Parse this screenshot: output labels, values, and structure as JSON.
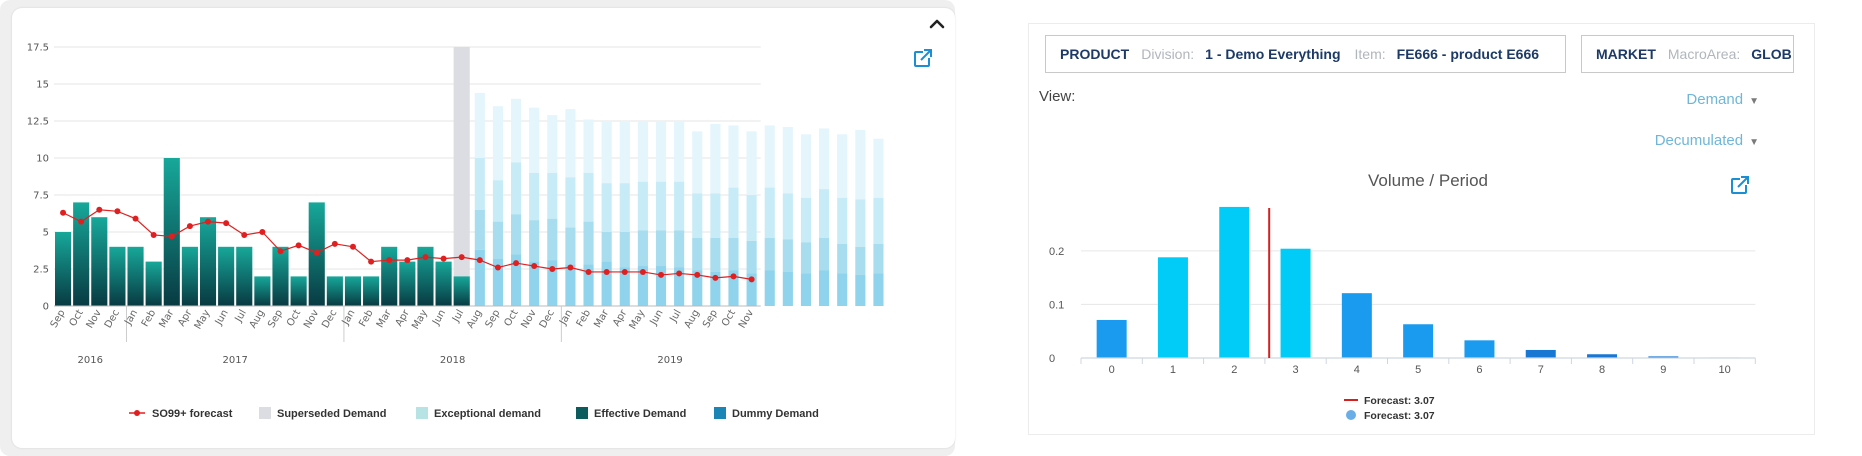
{
  "left_panel": {
    "collapse_icon": "chevron-up-icon",
    "export_icon": "external-link-icon",
    "legend": [
      {
        "label": "SO99+ forecast",
        "kind": "line",
        "color": "#e02020"
      },
      {
        "label": "Superseded Demand",
        "kind": "swatch",
        "color": "#dcdde3"
      },
      {
        "label": "Exceptional demand",
        "kind": "swatch",
        "color": "#b7e3e4"
      },
      {
        "label": "Effective Demand",
        "kind": "swatch",
        "color": "#0b5b5f"
      },
      {
        "label": "Dummy Demand",
        "kind": "swatch",
        "color": "#1b86b6"
      }
    ]
  },
  "right_panel": {
    "filters": {
      "product": {
        "key": "PRODUCT",
        "division_label": "Division:",
        "division_value": "1 - Demo Everything",
        "item_label": "Item:",
        "item_value": "FE666 - product E666"
      },
      "market": {
        "key": "MARKET",
        "macroarea_label": "MacroArea:",
        "macroarea_value": "GLOB"
      }
    },
    "view_label": "View:",
    "dropdowns": {
      "demand": "Demand",
      "decumulated": "Decumulated"
    },
    "title": "Volume / Period",
    "export_icon": "external-link-icon",
    "legend": [
      {
        "label": "Forecast: 3.07",
        "kind": "line",
        "color": "#d62020"
      },
      {
        "label": "Forecast: 3.07",
        "kind": "dot",
        "color": "#6aaee8"
      }
    ]
  },
  "chart_data": [
    {
      "type": "bar",
      "title": "",
      "stacked": true,
      "ylim": [
        0,
        17.5
      ],
      "yticks": [
        "0",
        "2.5",
        "5",
        "7.5",
        "10",
        "12.5",
        "15",
        "17.5"
      ],
      "categories": [
        "Sep",
        "Oct",
        "Nov",
        "Dec",
        "Jan",
        "Feb",
        "Mar",
        "Apr",
        "May",
        "Jun",
        "Jul",
        "Aug",
        "Sep",
        "Oct",
        "Nov",
        "Dec",
        "Jan",
        "Feb",
        "Mar",
        "Apr",
        "May",
        "Jun",
        "Jul",
        "Aug",
        "Sep",
        "Oct",
        "Nov",
        "Dec",
        "Jan",
        "Feb",
        "Mar",
        "Apr",
        "May",
        "Jun",
        "Jul",
        "Aug",
        "Sep",
        "Oct",
        "Nov"
      ],
      "year_labels": [
        {
          "label": "2016",
          "at_index": 1.5
        },
        {
          "label": "2017",
          "at_index": 9.5
        },
        {
          "label": "2018",
          "at_index": 21.5
        },
        {
          "label": "2019",
          "at_index": 33.5
        }
      ],
      "year_boundaries": [
        4,
        16,
        28
      ],
      "history_count": 23,
      "superseded_index": 22,
      "effective_values": [
        5,
        7,
        6,
        4,
        4,
        3,
        10,
        4,
        6,
        4,
        4,
        2,
        4,
        2,
        7,
        2,
        2,
        2,
        4,
        3,
        4,
        3,
        2
      ],
      "future_dark_values": [
        3.8,
        3.2,
        3.5,
        3.0,
        3.1,
        2.8,
        2.8,
        3.0,
        2.6,
        2.7,
        2.7,
        2.6,
        2.4,
        2.3,
        2.4,
        2.2,
        2.4,
        2.3,
        2.2,
        2.4,
        2.2,
        2.1,
        2.2
      ],
      "future_light_values": [
        6.5,
        5.7,
        6.2,
        5.8,
        5.9,
        5.3,
        5.7,
        5.0,
        5.0,
        5.1,
        5.1,
        5.1,
        4.6,
        4.6,
        4.6,
        4.4,
        4.6,
        4.5,
        4.3,
        4.6,
        4.2,
        4.0,
        4.2
      ],
      "future_mid_values": [
        10.0,
        8.5,
        9.7,
        9.0,
        9.0,
        8.7,
        9.0,
        8.3,
        8.3,
        8.4,
        8.4,
        8.4,
        7.6,
        7.6,
        8.0,
        7.5,
        8.0,
        7.6,
        7.3,
        7.9,
        7.3,
        7.2,
        7.3
      ],
      "future_total_values": [
        14.4,
        13.5,
        14.0,
        13.4,
        12.9,
        13.3,
        12.6,
        12.5,
        12.5,
        12.5,
        12.5,
        12.5,
        11.8,
        12.3,
        12.2,
        11.8,
        12.2,
        12.1,
        11.6,
        12.0,
        11.6,
        11.9,
        11.3
      ],
      "series": [
        {
          "name": "SO99+ forecast",
          "type": "line",
          "values": [
            6.3,
            5.7,
            6.5,
            6.4,
            5.9,
            4.8,
            4.7,
            5.4,
            5.7,
            5.6,
            4.8,
            5.0,
            3.7,
            4.1,
            3.6,
            4.2,
            4.0,
            3.0,
            3.1,
            3.1,
            3.3,
            3.2,
            3.3,
            3.1,
            2.6,
            2.9,
            2.7,
            2.5,
            2.6,
            2.3,
            2.3,
            2.3,
            2.3,
            2.1,
            2.2,
            2.1,
            1.9,
            2.0,
            1.8
          ]
        }
      ]
    },
    {
      "type": "bar",
      "title": "Volume / Period",
      "xlabel": "",
      "ylabel": "",
      "categories": [
        "0",
        "1",
        "2",
        "3",
        "4",
        "5",
        "6",
        "7",
        "8",
        "9",
        "10"
      ],
      "ylim": [
        0,
        0.28
      ],
      "yticks": [
        "0",
        "0.1",
        "0.2"
      ],
      "series": [
        {
          "name": "Forecast: 3.07",
          "values": [
            0.071,
            0.188,
            0.282,
            0.204,
            0.121,
            0.063,
            0.033,
            0.015,
            0.007,
            0.003,
            0.001
          ]
        }
      ],
      "bar_colors": [
        "#1a9bf0",
        "#00cdf7",
        "#00cdf7",
        "#00cdf7",
        "#1a9bf0",
        "#1a9bf0",
        "#1a9bf0",
        "#1877d2",
        "#1877d2",
        "#1877d2",
        "#1877d2"
      ],
      "forecast_marker": 3.07
    }
  ]
}
